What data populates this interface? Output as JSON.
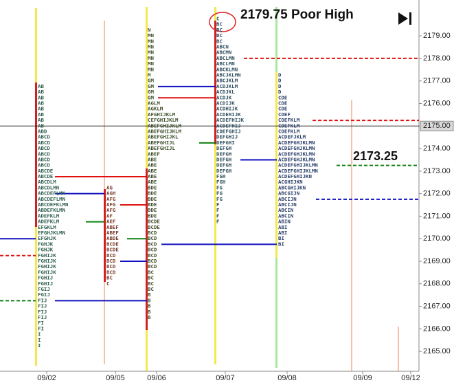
{
  "chart_data": {
    "type": "profile",
    "annotations": [
      "2179.75 Poor High",
      "2173.25"
    ],
    "categories": [
      "09/02",
      "09/05",
      "09/06",
      "09/07",
      "09/08",
      "09/09",
      "09/12"
    ],
    "ylim": [
      2164.12,
      2180.59
    ],
    "yticks": [
      {
        "value": 2165,
        "label": "2165.00"
      },
      {
        "value": 2166,
        "label": "2166.00"
      },
      {
        "value": 2167,
        "label": "2167.00"
      },
      {
        "value": 2168,
        "label": "2168.00"
      },
      {
        "value": 2169,
        "label": "2169.00"
      },
      {
        "value": 2170,
        "label": "2170.00"
      },
      {
        "value": 2171,
        "label": "2171.00"
      },
      {
        "value": 2172,
        "label": "2172.00"
      },
      {
        "value": 2173,
        "label": "2173.00"
      },
      {
        "value": 2174,
        "label": "2174.00"
      },
      {
        "value": 2175,
        "label": "2175.00"
      },
      {
        "value": 2176,
        "label": "2176.00"
      },
      {
        "value": 2177,
        "label": "2177.00"
      },
      {
        "value": 2178,
        "label": "2178.00"
      },
      {
        "value": 2179,
        "label": "2179.00"
      }
    ],
    "last_price": {
      "value": 2175,
      "label": "2175.00"
    },
    "tick_size": 0.25,
    "profiles": [
      {
        "top": 2176.75,
        "color": "#2f5f4f",
        "rows": [
          "AB",
          "AB",
          "AB",
          "AB",
          "AB",
          "AB",
          "AB",
          "AB",
          "ABD",
          "ABCD",
          "ABCD",
          "ABCD",
          "ABCD",
          "ABCD",
          "ABCD",
          "ABCDE",
          "ABCDE",
          "ABCDLM",
          "ABCDLMN",
          "ABCDEFLMN",
          "ABCDEFLMN",
          "ABCDEFKLMN",
          "ABDEFKLMN",
          "ADEFKLM",
          "ADEFKLM",
          "EFGKLM",
          "EFGHJKLMN",
          "EFGHJK",
          "FGHJK",
          "FGHJK",
          "FGHIJK",
          "FGHIJK",
          "FGHIJK",
          "FGHIJK",
          "FGHIJ",
          "FGHIJ",
          "FGIJ",
          "FGIJ",
          "FIJ",
          "FIJ",
          "FIJ",
          "FIJ",
          "FI",
          "FI",
          "I",
          "I",
          "I"
        ]
      },
      {
        "top": 2172.25,
        "color": "#7a3a2a",
        "rows": [
          "AG",
          "AGH",
          "AFG",
          "AFG",
          "AFG",
          "AF",
          "AEF",
          "ABEF",
          "ABEF",
          "ABDE",
          "BCDE",
          "BCDE",
          "BCD",
          "BCD",
          "BCD",
          "BCD",
          "BC",
          "C"
        ]
      },
      {
        "top": 2179.25,
        "color": "#3d4f2a",
        "rows": [
          "N",
          "MN",
          "MN",
          "MN",
          "MN",
          "MN",
          "MN",
          "MN",
          "M",
          "GM",
          "GM",
          "GM",
          "GM",
          "AGLM",
          "AGKLM",
          "AFGHIJKLM",
          "CEFGHIJKLM",
          "ABEFGHIJKLM",
          "ABEFGHIJKLM",
          "ABEFGHIJKL",
          "ABEFGHIJL",
          "ABEFGHIJL",
          "ABEF",
          "ABE",
          "ABE",
          "ABE",
          "ABE",
          "ABE",
          "BDE",
          "BDE",
          "BDE",
          "BDE",
          "BDE",
          "BDE",
          "BCDE",
          "BCDE",
          "BCD",
          "BCD",
          "BCD",
          "BCD",
          "BCD",
          "BCD",
          "BCD",
          "BC",
          "BC",
          "BC",
          "BC",
          "B",
          "B",
          "B",
          "B",
          "B"
        ]
      },
      {
        "top": 2179.75,
        "color": "#2f4f5f",
        "rows": [
          "C",
          "BC",
          "BC",
          "BC",
          "BC",
          "ABCN",
          "ABCMN",
          "ABCLMN",
          "ABCLMN",
          "ABCKLMN",
          "ABCJKLMN",
          "ABCJKLM",
          "ACDJKLM",
          "ACDJKL",
          "ACDJK",
          "ACDIJK",
          "ACDHIJK",
          "ACDEHIJK",
          "ACDEFHIJK",
          "ACDEFHIJ",
          "CDEFGHIJ",
          "DEFGHIJ",
          "DEFGHI",
          "DEFGH",
          "DEFGH",
          "DEFGH",
          "DEFGH",
          "DEFGH",
          "FGH",
          "FGH",
          "FG",
          "FG",
          "FG",
          "F",
          "F",
          "F",
          "F"
        ]
      },
      {
        "top": 2177.25,
        "color": "#2a3f6a",
        "rows": [
          "D",
          "D",
          "D",
          "D",
          "CDE",
          "CDE",
          "CDE",
          "CDEF",
          "CDEFKLM",
          "CDEFKLM",
          "CDEFKLM",
          "ACDEFJKLM",
          "ACDEFGHJKLMN",
          "ACDEFGHJKLMN",
          "ACDEFGHJKLMN",
          "ACDEFGHJKLMN",
          "ACDEFGHIJKLMN",
          "ACDEFGHIJKLMN",
          "ACDEFGHIJKN",
          "ACGHIJKN",
          "ABCGHIJKN",
          "ABCGIJN",
          "ABCIJN",
          "ABCIJN",
          "ABCIN",
          "ABCIN",
          "ABIN",
          "ABI",
          "ABI",
          "BI",
          "BI"
        ]
      }
    ],
    "levels": [
      {
        "price": 2178.0,
        "color": "#e01010",
        "dashed": true
      },
      {
        "price": 2176.75,
        "color": "#1010c0",
        "dashed": false
      },
      {
        "price": 2176.25,
        "color": "#e01010",
        "dashed": false
      },
      {
        "price": 2175.25,
        "color": "#e01010",
        "dashed": true
      },
      {
        "price": 2174.25,
        "color": "#108010",
        "dashed": false
      },
      {
        "price": 2173.5,
        "color": "#1010c0",
        "dashed": false
      },
      {
        "price": 2173.25,
        "color": "#108010",
        "dashed": true
      },
      {
        "price": 2172.75,
        "color": "#e01010",
        "dashed": false
      },
      {
        "price": 2172.0,
        "color": "#1010c0",
        "dashed": false
      },
      {
        "price": 2171.75,
        "color": "#1010c0",
        "dashed": true
      },
      {
        "price": 2171.5,
        "color": "#e01010",
        "dashed": false
      },
      {
        "price": 2170.75,
        "color": "#108010",
        "dashed": false
      },
      {
        "price": 2170.0,
        "color": "#1010c0",
        "dashed": false
      },
      {
        "price": 2170.0,
        "color": "#108010",
        "dashed": false
      },
      {
        "price": 2169.75,
        "color": "#1010c0",
        "dashed": false
      },
      {
        "price": 2169.25,
        "color": "#e01010",
        "dashed": true
      },
      {
        "price": 2169.0,
        "color": "#1010c0",
        "dashed": false
      },
      {
        "price": 2167.25,
        "color": "#108010",
        "dashed": true
      },
      {
        "price": 2167.25,
        "color": "#1010c0",
        "dashed": false
      }
    ]
  }
}
